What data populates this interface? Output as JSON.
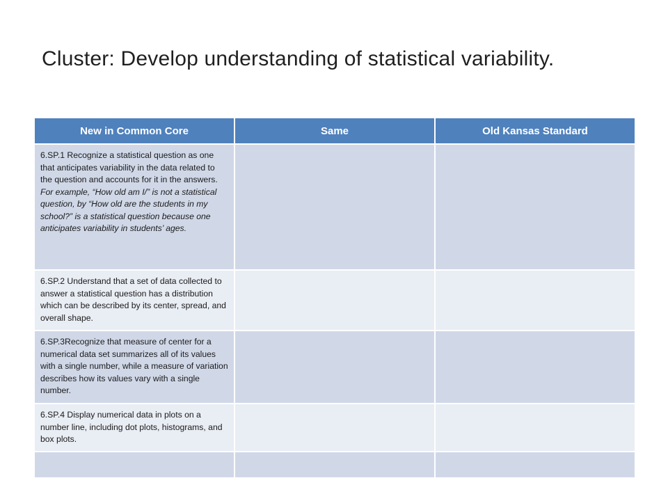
{
  "slide": {
    "title": "Cluster:  Develop understanding  of statistical variability."
  },
  "table": {
    "headers": [
      "New in Common Core",
      "Same",
      "Old Kansas Standard"
    ],
    "rows": [
      {
        "code_text": "6.SP.1  Recognize a statistical question as one that anticipates variability in the data related to the question and accounts for it in the answers.  ",
        "example_text": "For example, “How old am I/” is not a statistical question, by “How old are the students in my school?”  is a statistical question because one anticipates variability in students’ ages.",
        "same": "",
        "old": ""
      },
      {
        "code_text": "6.SP.2  Understand that a set of data collected to answer a statistical question has a distribution which can be described by its center, spread, and overall shape.",
        "same": "",
        "old": ""
      },
      {
        "code_text": "6.SP.3Recognize that measure of center for a numerical data set summarizes all of its values with a single number, while a measure of variation describes how its values vary with a single number.",
        "same": "",
        "old": ""
      },
      {
        "code_text": "6.SP.4  Display numerical data in plots on a number line, including dot plots, histograms, and box plots.",
        "same": "",
        "old": ""
      },
      {
        "code_text": "",
        "same": "",
        "old": ""
      }
    ]
  }
}
